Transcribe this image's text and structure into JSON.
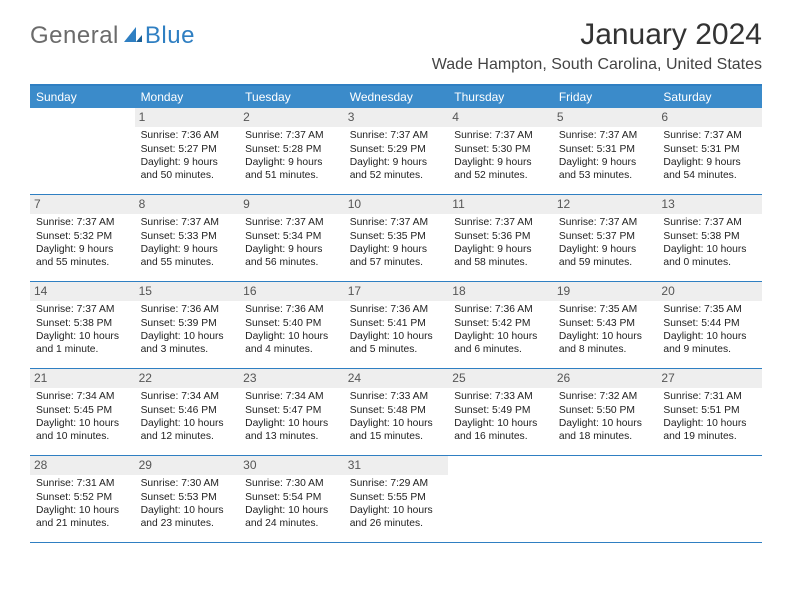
{
  "logo": {
    "general": "General",
    "blue": "Blue"
  },
  "title": "January 2024",
  "subtitle": "Wade Hampton, South Carolina, United States",
  "colors": {
    "header_bg": "#3b8bca",
    "rule": "#2f7fc2",
    "daynum_bg": "#eeeeee",
    "text": "#222222",
    "logo_gray": "#6b6b6b",
    "logo_blue": "#2f7fc2"
  },
  "dow": [
    "Sunday",
    "Monday",
    "Tuesday",
    "Wednesday",
    "Thursday",
    "Friday",
    "Saturday"
  ],
  "weeks": [
    [
      null,
      {
        "n": "1",
        "sr": "Sunrise: 7:36 AM",
        "ss": "Sunset: 5:27 PM",
        "dl": "Daylight: 9 hours and 50 minutes."
      },
      {
        "n": "2",
        "sr": "Sunrise: 7:37 AM",
        "ss": "Sunset: 5:28 PM",
        "dl": "Daylight: 9 hours and 51 minutes."
      },
      {
        "n": "3",
        "sr": "Sunrise: 7:37 AM",
        "ss": "Sunset: 5:29 PM",
        "dl": "Daylight: 9 hours and 52 minutes."
      },
      {
        "n": "4",
        "sr": "Sunrise: 7:37 AM",
        "ss": "Sunset: 5:30 PM",
        "dl": "Daylight: 9 hours and 52 minutes."
      },
      {
        "n": "5",
        "sr": "Sunrise: 7:37 AM",
        "ss": "Sunset: 5:31 PM",
        "dl": "Daylight: 9 hours and 53 minutes."
      },
      {
        "n": "6",
        "sr": "Sunrise: 7:37 AM",
        "ss": "Sunset: 5:31 PM",
        "dl": "Daylight: 9 hours and 54 minutes."
      }
    ],
    [
      {
        "n": "7",
        "sr": "Sunrise: 7:37 AM",
        "ss": "Sunset: 5:32 PM",
        "dl": "Daylight: 9 hours and 55 minutes."
      },
      {
        "n": "8",
        "sr": "Sunrise: 7:37 AM",
        "ss": "Sunset: 5:33 PM",
        "dl": "Daylight: 9 hours and 55 minutes."
      },
      {
        "n": "9",
        "sr": "Sunrise: 7:37 AM",
        "ss": "Sunset: 5:34 PM",
        "dl": "Daylight: 9 hours and 56 minutes."
      },
      {
        "n": "10",
        "sr": "Sunrise: 7:37 AM",
        "ss": "Sunset: 5:35 PM",
        "dl": "Daylight: 9 hours and 57 minutes."
      },
      {
        "n": "11",
        "sr": "Sunrise: 7:37 AM",
        "ss": "Sunset: 5:36 PM",
        "dl": "Daylight: 9 hours and 58 minutes."
      },
      {
        "n": "12",
        "sr": "Sunrise: 7:37 AM",
        "ss": "Sunset: 5:37 PM",
        "dl": "Daylight: 9 hours and 59 minutes."
      },
      {
        "n": "13",
        "sr": "Sunrise: 7:37 AM",
        "ss": "Sunset: 5:38 PM",
        "dl": "Daylight: 10 hours and 0 minutes."
      }
    ],
    [
      {
        "n": "14",
        "sr": "Sunrise: 7:37 AM",
        "ss": "Sunset: 5:38 PM",
        "dl": "Daylight: 10 hours and 1 minute."
      },
      {
        "n": "15",
        "sr": "Sunrise: 7:36 AM",
        "ss": "Sunset: 5:39 PM",
        "dl": "Daylight: 10 hours and 3 minutes."
      },
      {
        "n": "16",
        "sr": "Sunrise: 7:36 AM",
        "ss": "Sunset: 5:40 PM",
        "dl": "Daylight: 10 hours and 4 minutes."
      },
      {
        "n": "17",
        "sr": "Sunrise: 7:36 AM",
        "ss": "Sunset: 5:41 PM",
        "dl": "Daylight: 10 hours and 5 minutes."
      },
      {
        "n": "18",
        "sr": "Sunrise: 7:36 AM",
        "ss": "Sunset: 5:42 PM",
        "dl": "Daylight: 10 hours and 6 minutes."
      },
      {
        "n": "19",
        "sr": "Sunrise: 7:35 AM",
        "ss": "Sunset: 5:43 PM",
        "dl": "Daylight: 10 hours and 8 minutes."
      },
      {
        "n": "20",
        "sr": "Sunrise: 7:35 AM",
        "ss": "Sunset: 5:44 PM",
        "dl": "Daylight: 10 hours and 9 minutes."
      }
    ],
    [
      {
        "n": "21",
        "sr": "Sunrise: 7:34 AM",
        "ss": "Sunset: 5:45 PM",
        "dl": "Daylight: 10 hours and 10 minutes."
      },
      {
        "n": "22",
        "sr": "Sunrise: 7:34 AM",
        "ss": "Sunset: 5:46 PM",
        "dl": "Daylight: 10 hours and 12 minutes."
      },
      {
        "n": "23",
        "sr": "Sunrise: 7:34 AM",
        "ss": "Sunset: 5:47 PM",
        "dl": "Daylight: 10 hours and 13 minutes."
      },
      {
        "n": "24",
        "sr": "Sunrise: 7:33 AM",
        "ss": "Sunset: 5:48 PM",
        "dl": "Daylight: 10 hours and 15 minutes."
      },
      {
        "n": "25",
        "sr": "Sunrise: 7:33 AM",
        "ss": "Sunset: 5:49 PM",
        "dl": "Daylight: 10 hours and 16 minutes."
      },
      {
        "n": "26",
        "sr": "Sunrise: 7:32 AM",
        "ss": "Sunset: 5:50 PM",
        "dl": "Daylight: 10 hours and 18 minutes."
      },
      {
        "n": "27",
        "sr": "Sunrise: 7:31 AM",
        "ss": "Sunset: 5:51 PM",
        "dl": "Daylight: 10 hours and 19 minutes."
      }
    ],
    [
      {
        "n": "28",
        "sr": "Sunrise: 7:31 AM",
        "ss": "Sunset: 5:52 PM",
        "dl": "Daylight: 10 hours and 21 minutes."
      },
      {
        "n": "29",
        "sr": "Sunrise: 7:30 AM",
        "ss": "Sunset: 5:53 PM",
        "dl": "Daylight: 10 hours and 23 minutes."
      },
      {
        "n": "30",
        "sr": "Sunrise: 7:30 AM",
        "ss": "Sunset: 5:54 PM",
        "dl": "Daylight: 10 hours and 24 minutes."
      },
      {
        "n": "31",
        "sr": "Sunrise: 7:29 AM",
        "ss": "Sunset: 5:55 PM",
        "dl": "Daylight: 10 hours and 26 minutes."
      },
      null,
      null,
      null
    ]
  ]
}
